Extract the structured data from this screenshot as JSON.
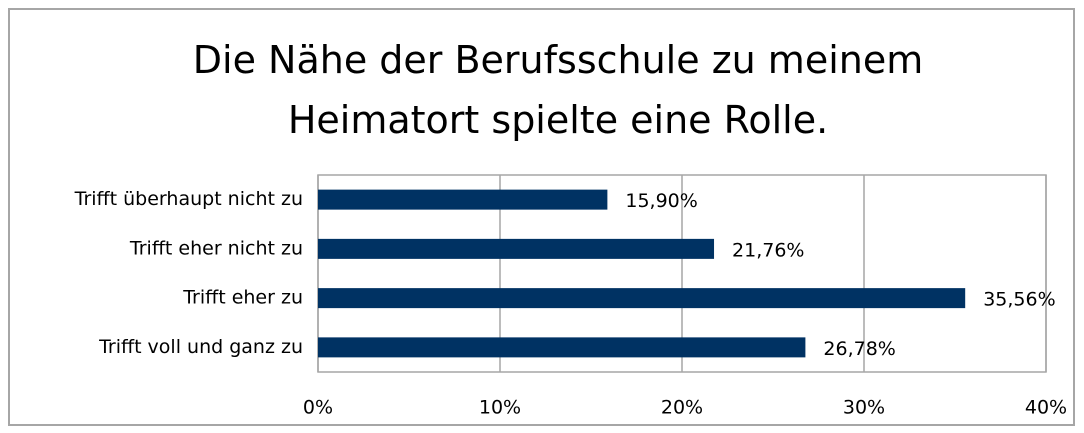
{
  "chart_data": {
    "type": "bar",
    "orientation": "horizontal",
    "title": "Die Nähe der Berufsschule zu meinem Heimatort spielte eine Rolle.",
    "categories": [
      "Trifft überhaupt nicht zu",
      "Trifft eher nicht zu",
      "Trifft eher zu",
      "Trifft voll und ganz zu"
    ],
    "values": [
      15.9,
      21.76,
      35.56,
      26.78
    ],
    "value_labels": [
      "15,90%",
      "21,76%",
      "35,56%",
      "26,78%"
    ],
    "color": "#003263",
    "xlim": [
      0,
      40
    ],
    "xticks": [
      {
        "value": 0,
        "label": "0%"
      },
      {
        "value": 10,
        "label": "10%"
      },
      {
        "value": 20,
        "label": "20%"
      },
      {
        "value": 30,
        "label": "30%"
      },
      {
        "value": 40,
        "label": "40%"
      }
    ],
    "grid": true
  }
}
